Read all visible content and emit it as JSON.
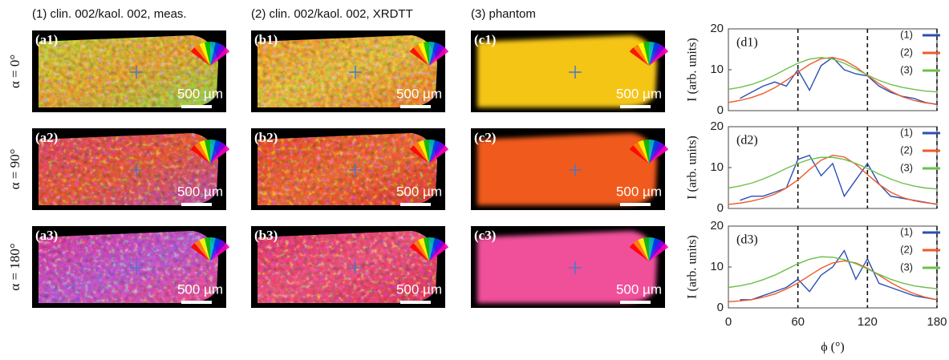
{
  "column_titles": [
    "(1) clin. 002/kaol. 002, meas.",
    "(2) clin. 002/kaol. 002, XRDTT",
    "(3) phantom"
  ],
  "row_labels": [
    "α = 0°",
    "α = 90°",
    "α = 180°"
  ],
  "panel_labels": [
    [
      "(a1)",
      "(b1)",
      "(c1)"
    ],
    [
      "(a2)",
      "(b2)",
      "(c2)"
    ],
    [
      "(a3)",
      "(b3)",
      "(c3)"
    ]
  ],
  "scale_bar": "500 µm",
  "chart_data": [
    {
      "type": "line",
      "panel_label": "(d1)",
      "y_label": "I (arb. units)",
      "show_xtick_labels": false,
      "x": [
        0,
        10,
        20,
        30,
        40,
        50,
        60,
        70,
        80,
        90,
        100,
        110,
        120,
        130,
        140,
        150,
        160,
        170,
        180
      ],
      "xlim": [
        0,
        180
      ],
      "xticks": [
        0,
        60,
        120,
        180
      ],
      "ylim": [
        0,
        20
      ],
      "yticks": [
        0,
        10,
        20
      ],
      "vlines": [
        60,
        120,
        180
      ],
      "series": [
        {
          "name": "(1)",
          "color": "#2b4fb5",
          "values": [
            null,
            3,
            4.5,
            6,
            7,
            6,
            10,
            5,
            11,
            13,
            10,
            9,
            8.5,
            6,
            4.5,
            3.5,
            3,
            2,
            1.5
          ]
        },
        {
          "name": "(2)",
          "color": "#ee5a2c",
          "values": [
            2,
            2.5,
            3.2,
            4.2,
            5.6,
            7.4,
            9.4,
            11.3,
            12.7,
            13,
            12.3,
            10.7,
            8.6,
            6.6,
            4.8,
            3.4,
            2.5,
            1.9,
            1.6
          ]
        },
        {
          "name": "(3)",
          "color": "#6cc04a",
          "values": [
            5.2,
            5.7,
            6.4,
            7.4,
            8.7,
            10.2,
            11.6,
            12.6,
            13,
            12.6,
            11.6,
            10.2,
            8.7,
            7.4,
            6.4,
            5.7,
            5.2,
            4.8,
            4.6
          ]
        }
      ]
    },
    {
      "type": "line",
      "panel_label": "(d2)",
      "y_label": "I (arb. units)",
      "show_xtick_labels": false,
      "x": [
        0,
        10,
        20,
        30,
        40,
        50,
        60,
        70,
        80,
        90,
        100,
        110,
        120,
        130,
        140,
        150,
        160,
        170,
        180
      ],
      "xlim": [
        0,
        180
      ],
      "xticks": [
        0,
        60,
        120,
        180
      ],
      "ylim": [
        0,
        20
      ],
      "yticks": [
        0,
        10,
        20
      ],
      "vlines": [
        60,
        120,
        180
      ],
      "series": [
        {
          "name": "(1)",
          "color": "#2b4fb5",
          "values": [
            null,
            2,
            3,
            3,
            4,
            5,
            12,
            13,
            8,
            11,
            3,
            7,
            11,
            6,
            3,
            2.5,
            2,
            1.5,
            1
          ]
        },
        {
          "name": "(2)",
          "color": "#ee5a2c",
          "values": [
            1,
            1.3,
            1.8,
            2.5,
            3.5,
            5,
            7,
            9.5,
            11.8,
            13,
            12.6,
            10.8,
            8.3,
            5.9,
            4,
            2.7,
            1.9,
            1.4,
            1.1
          ]
        },
        {
          "name": "(3)",
          "color": "#6cc04a",
          "values": [
            5,
            5.5,
            6.2,
            7.2,
            8.4,
            9.8,
            11,
            12,
            12.5,
            12.5,
            12,
            11,
            9.8,
            8.4,
            7.2,
            6.2,
            5.5,
            5,
            4.8
          ]
        }
      ]
    },
    {
      "type": "line",
      "panel_label": "(d3)",
      "y_label": "I (arb. units)",
      "x_label": "ϕ (°)",
      "show_xtick_labels": true,
      "x": [
        0,
        10,
        20,
        30,
        40,
        50,
        60,
        70,
        80,
        90,
        100,
        110,
        120,
        130,
        140,
        150,
        160,
        170,
        180
      ],
      "xlim": [
        0,
        180
      ],
      "xticks": [
        0,
        60,
        120,
        180
      ],
      "ylim": [
        0,
        20
      ],
      "yticks": [
        0,
        10,
        20
      ],
      "vlines": [
        60,
        120,
        180
      ],
      "series": [
        {
          "name": "(1)",
          "color": "#2b4fb5",
          "values": [
            null,
            2,
            2,
            3,
            4,
            5,
            7,
            4,
            8,
            10,
            14,
            7,
            12,
            6,
            5,
            4,
            3,
            2.5,
            2
          ]
        },
        {
          "name": "(2)",
          "color": "#ee5a2c",
          "values": [
            1.5,
            1.7,
            2,
            2.6,
            3.4,
            4.6,
            6.1,
            7.9,
            9.7,
            11,
            11.5,
            11,
            9.7,
            8,
            6.2,
            4.7,
            3.5,
            2.6,
            2
          ]
        },
        {
          "name": "(3)",
          "color": "#6cc04a",
          "values": [
            5,
            5.4,
            6,
            6.9,
            8,
            9.4,
            10.8,
            11.9,
            12.5,
            12.4,
            11.8,
            10.8,
            9.5,
            8.2,
            7,
            6.1,
            5.4,
            5,
            4.7
          ]
        }
      ]
    }
  ]
}
